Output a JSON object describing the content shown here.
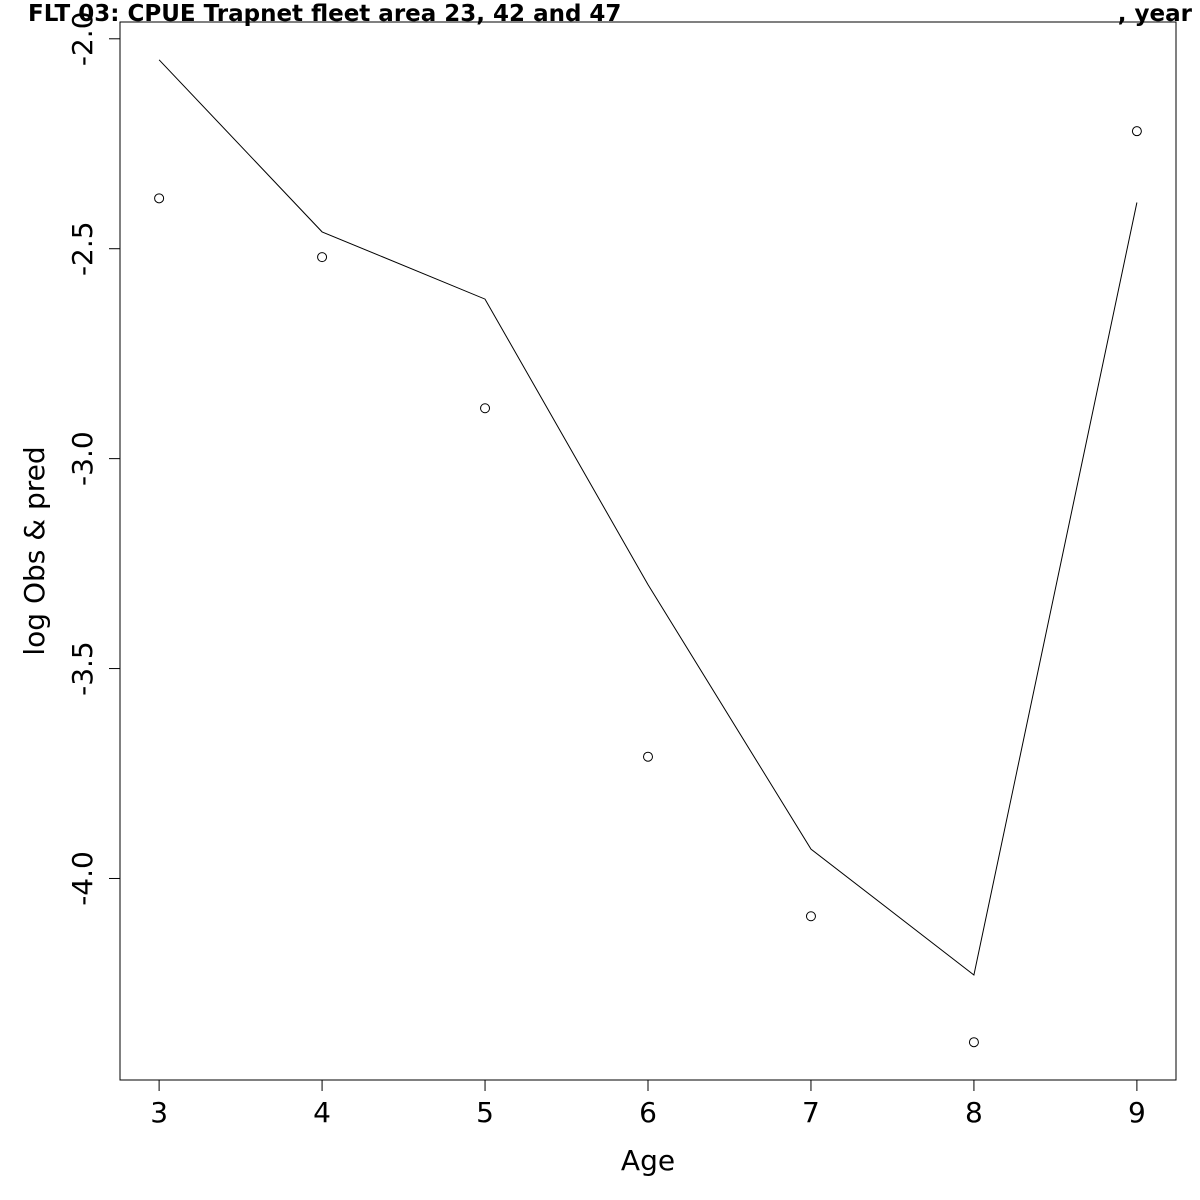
{
  "title_main": "FLT 03: CPUE Trapnet fleet area 23, 42 and 47",
  "title_right": ", year",
  "colors": {
    "background": "#ffffff",
    "ink": "#000000"
  },
  "chart_data": {
    "type": "line",
    "title": "FLT 03: CPUE Trapnet fleet area 23, 42 and 47 , year",
    "xlabel": "Age",
    "ylabel": "log Obs & pred",
    "x": [
      3,
      4,
      5,
      6,
      7,
      8,
      9
    ],
    "xticks": [
      "3",
      "4",
      "5",
      "6",
      "7",
      "8",
      "9"
    ],
    "yticks": [
      "-2.0",
      "-2.5",
      "-3.0",
      "-3.5",
      "-4.0"
    ],
    "ytick_values": [
      -2.0,
      -2.5,
      -3.0,
      -3.5,
      -4.0
    ],
    "xlim": [
      2.76,
      9.24
    ],
    "ylim": [
      -4.48,
      -1.96
    ],
    "grid": false,
    "series": [
      {
        "kind": "points",
        "marker": "open-circle",
        "values": [
          -2.38,
          -2.52,
          -2.88,
          -3.71,
          -4.09,
          -4.39,
          -2.22
        ]
      },
      {
        "kind": "line",
        "values": [
          -2.05,
          -2.46,
          -2.62,
          -3.3,
          -3.93,
          -4.23,
          -2.39
        ]
      }
    ]
  }
}
